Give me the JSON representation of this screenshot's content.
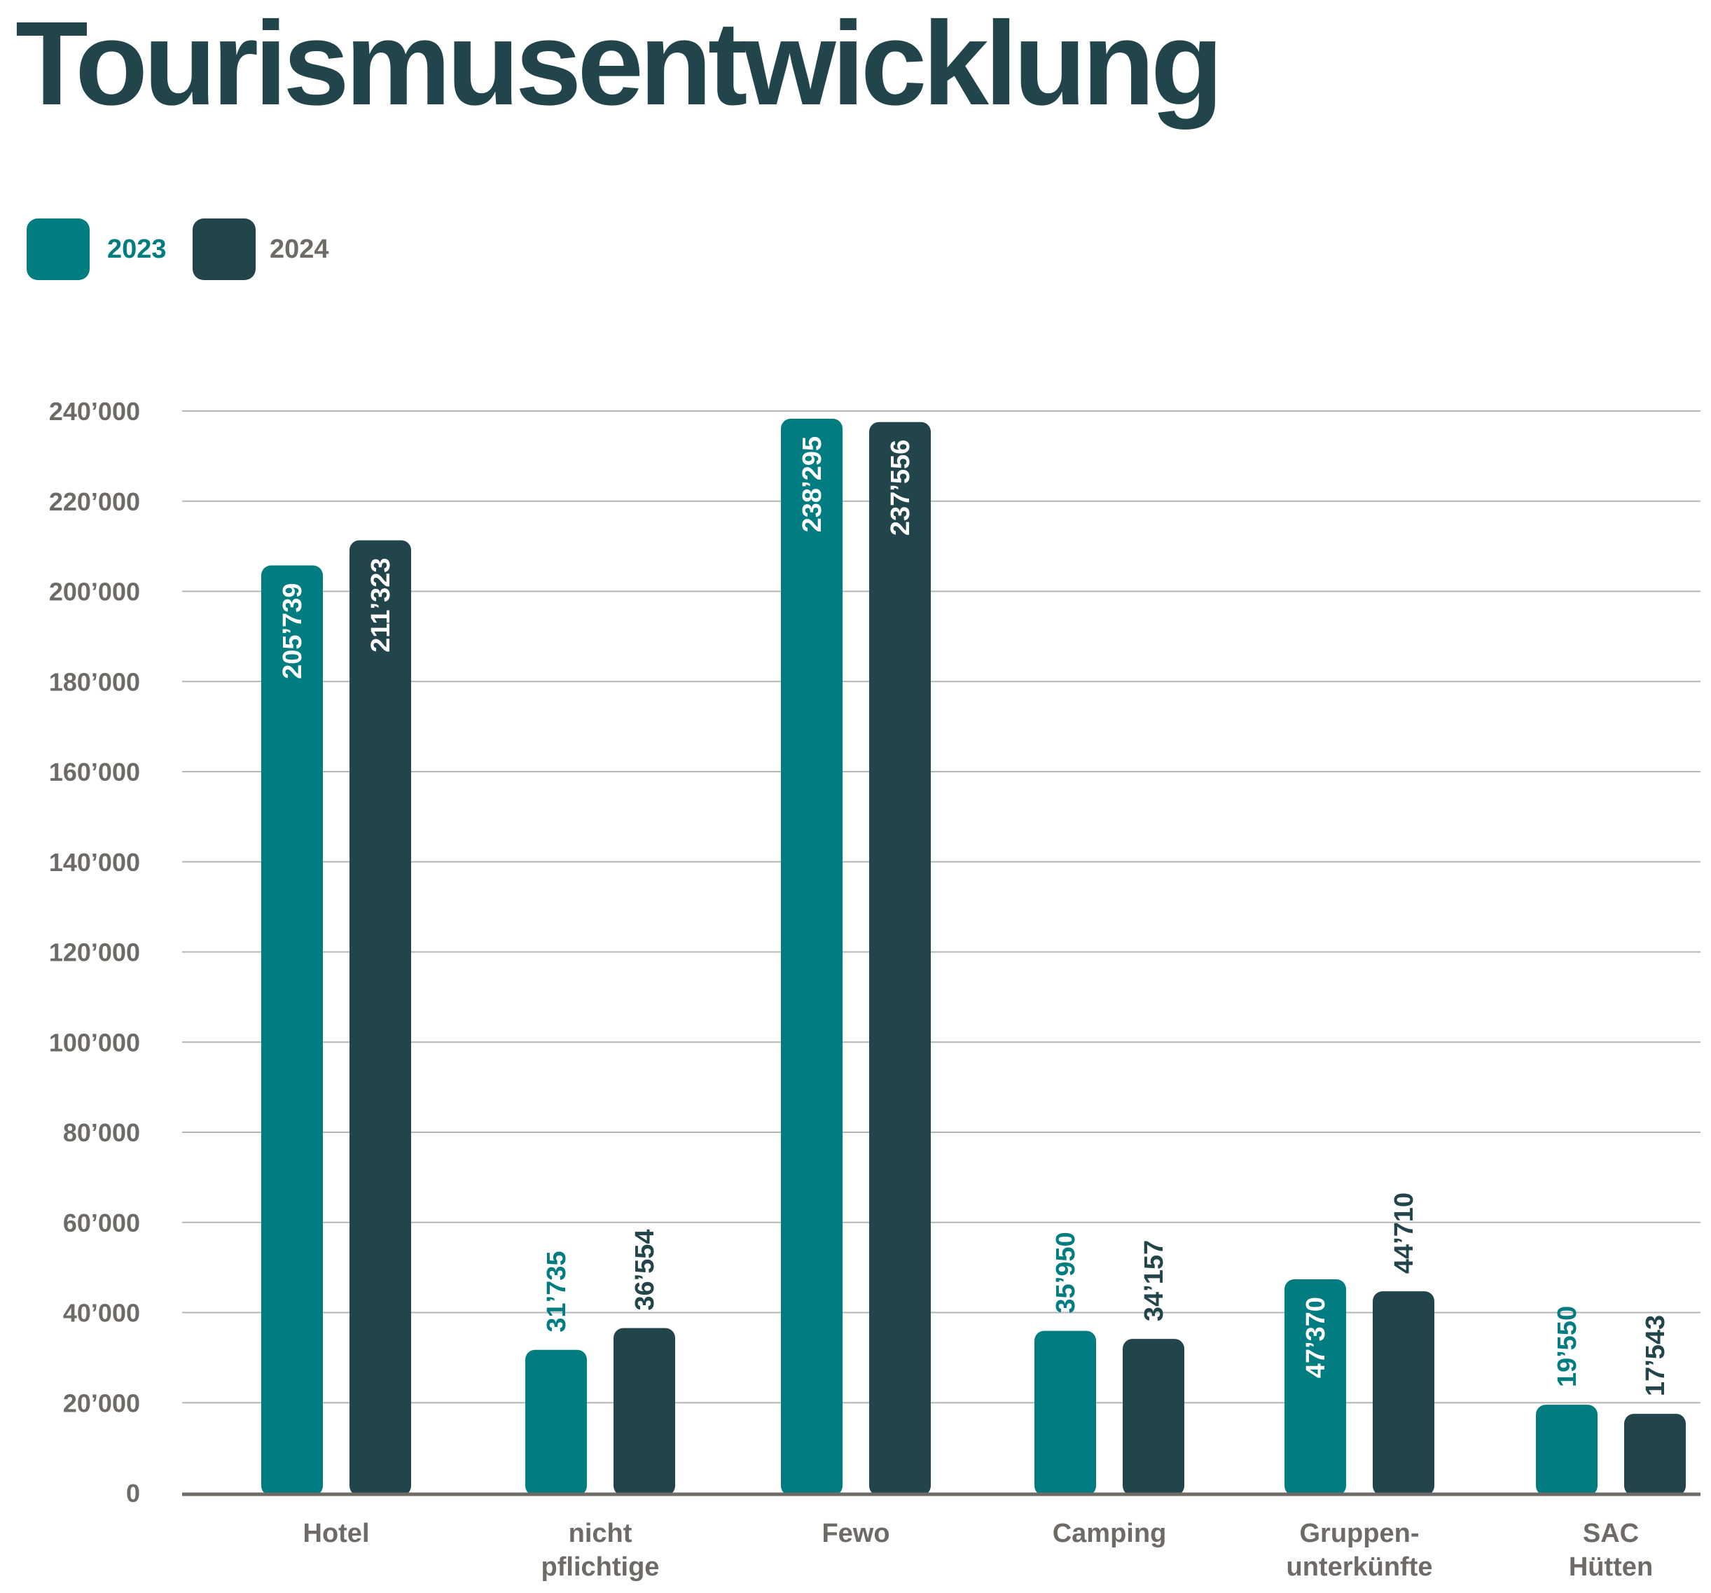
{
  "title": "Tourismusentwicklung",
  "colors": {
    "series_2023": "#017d81",
    "series_2024": "#22454b",
    "title": "#22454b",
    "axis_text": "#6e6b66",
    "grid": "#b5b5b5"
  },
  "chart_data": {
    "type": "bar",
    "title": "",
    "xlabel": "",
    "ylabel": "",
    "categories": [
      [
        "Hotel"
      ],
      [
        "nicht",
        "pflichtige"
      ],
      [
        "Fewo"
      ],
      [
        "Camping"
      ],
      [
        "Gruppen-",
        "unterkünfte"
      ],
      [
        "SAC",
        "Hütten"
      ]
    ],
    "series": [
      {
        "name": "2023",
        "values": [
          205739,
          31735,
          238295,
          35950,
          47370,
          19550
        ],
        "labels": [
          "205’739",
          "31’735",
          "238’295",
          "35’950",
          "47’370",
          "19’550"
        ]
      },
      {
        "name": "2024",
        "values": [
          211323,
          36554,
          237556,
          34157,
          44710,
          17543
        ],
        "labels": [
          "211’323",
          "36’554",
          "237’556",
          "34’157",
          "44’710",
          "17’543"
        ]
      }
    ],
    "ylim": [
      0,
      240000
    ],
    "yticks": [
      0,
      20000,
      40000,
      60000,
      80000,
      100000,
      120000,
      140000,
      160000,
      180000,
      200000,
      220000,
      240000
    ],
    "ytick_labels": [
      "0",
      "20’000",
      "40’000",
      "60’000",
      "80’000",
      "100’000",
      "120’000",
      "140’000",
      "160’000",
      "180’000",
      "200’000",
      "220’000",
      "240’000"
    ],
    "grid": true,
    "legend_position": "top-left"
  }
}
